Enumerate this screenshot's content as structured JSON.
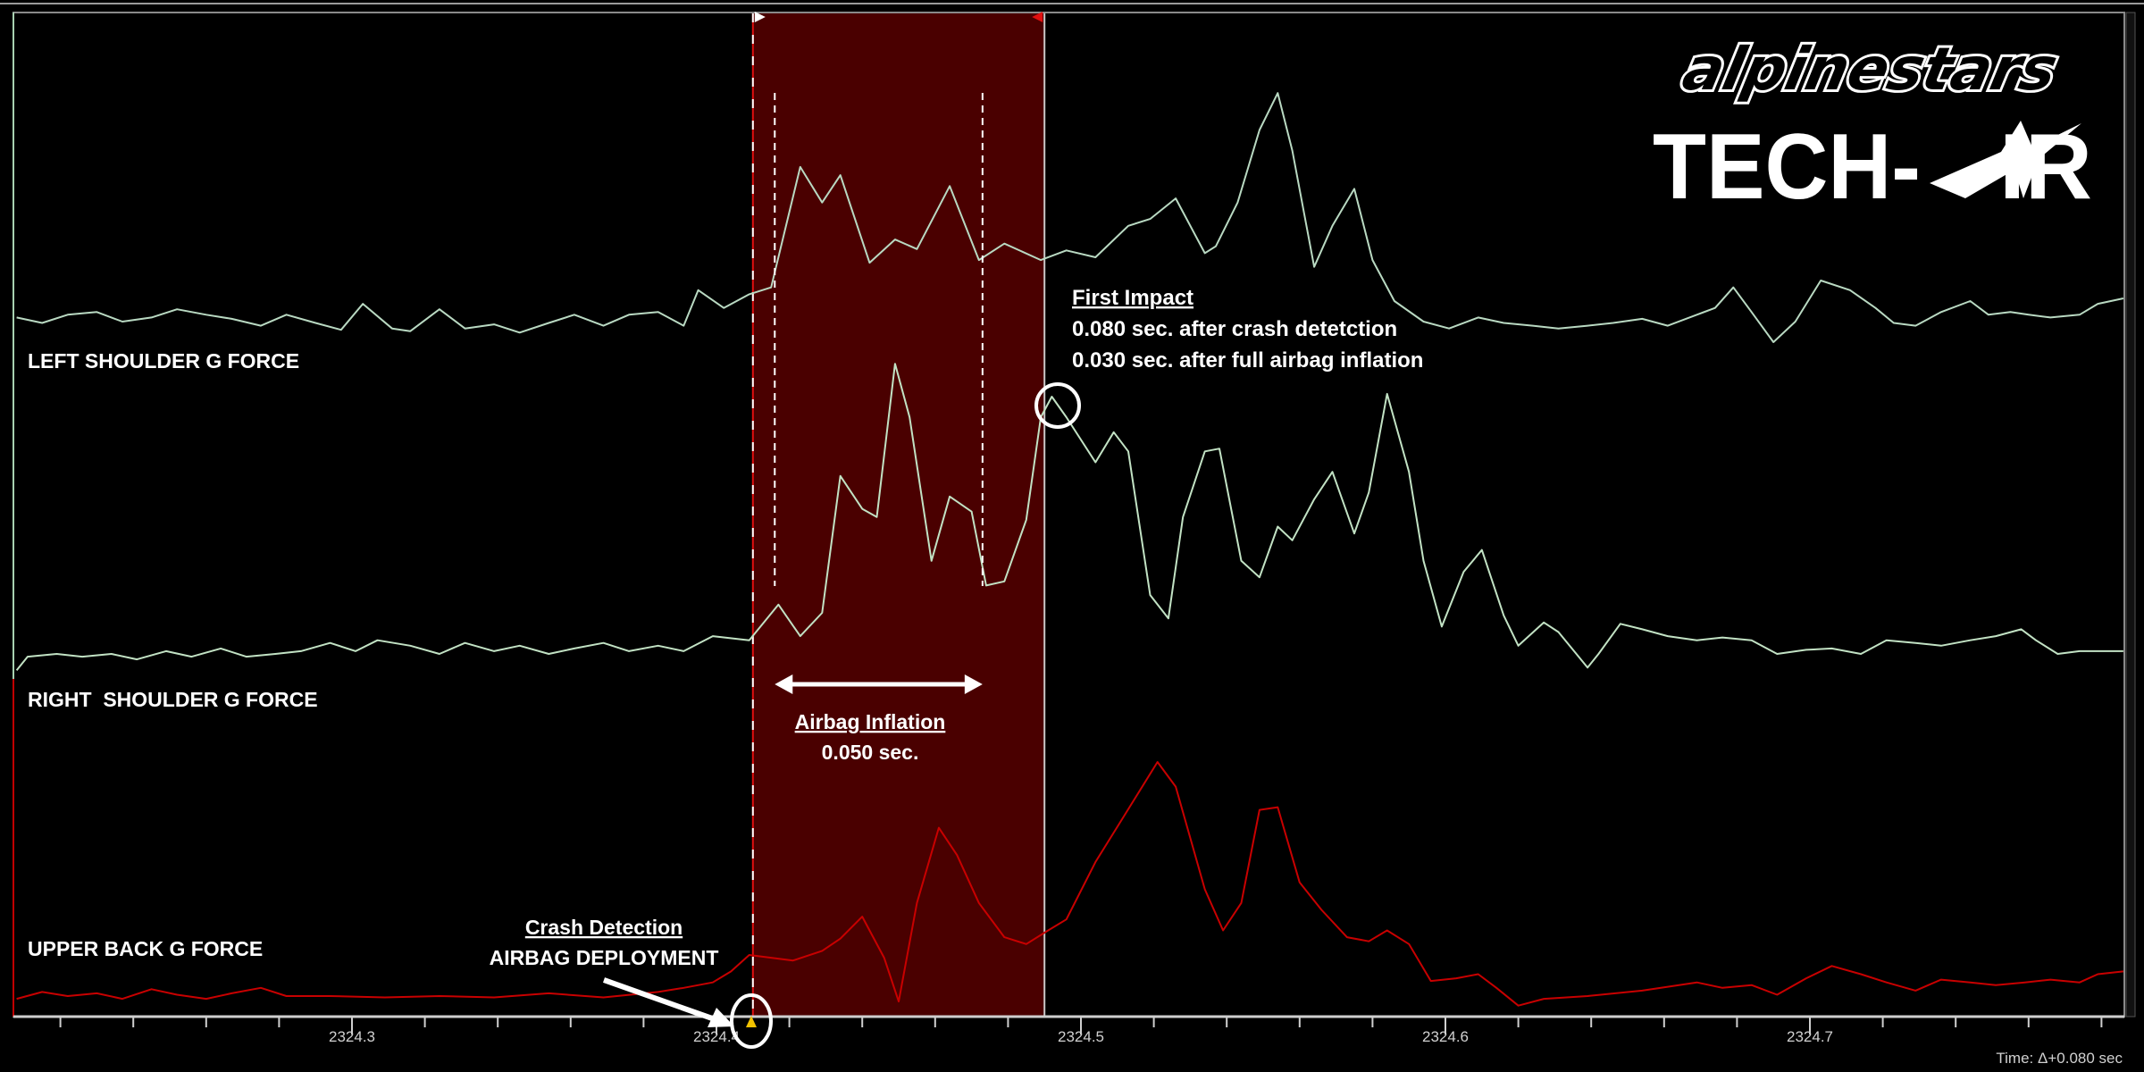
{
  "chart_data": {
    "type": "line",
    "title": "",
    "xlabel": "",
    "ylabel": "",
    "xlim": [
      2324.206,
      2324.786
    ],
    "x_ticks": [
      2324.3,
      2324.4,
      2324.5,
      2324.6,
      2324.7
    ],
    "x_tick_labels": [
      "2324.3",
      "2324.4",
      "2324.5",
      "2324.6",
      "2324.7"
    ],
    "minor_tick_step": 0.02,
    "grid": false,
    "time_readout": "Time: Δ+0.080 sec",
    "series": [
      {
        "name": "LEFT SHOULDER G FORCE",
        "color": "#b9d9c2",
        "points": [
          [
            2324.208,
            3
          ],
          [
            2324.215,
            -1
          ],
          [
            2324.222,
            5
          ],
          [
            2324.23,
            7
          ],
          [
            2324.237,
            0
          ],
          [
            2324.245,
            3
          ],
          [
            2324.252,
            9
          ],
          [
            2324.26,
            5
          ],
          [
            2324.267,
            2
          ],
          [
            2324.275,
            -3
          ],
          [
            2324.282,
            5
          ],
          [
            2324.29,
            -1
          ],
          [
            2324.297,
            -6
          ],
          [
            2324.303,
            13
          ],
          [
            2324.311,
            -5
          ],
          [
            2324.316,
            -7
          ],
          [
            2324.324,
            9
          ],
          [
            2324.331,
            -5
          ],
          [
            2324.339,
            -2
          ],
          [
            2324.346,
            -8
          ],
          [
            2324.354,
            -1
          ],
          [
            2324.361,
            5
          ],
          [
            2324.369,
            -3
          ],
          [
            2324.376,
            5
          ],
          [
            2324.384,
            7
          ],
          [
            2324.391,
            -3
          ],
          [
            2324.395,
            23
          ],
          [
            2324.402,
            10
          ],
          [
            2324.409,
            20
          ],
          [
            2324.415,
            25
          ],
          [
            2324.423,
            113
          ],
          [
            2324.429,
            87
          ],
          [
            2324.434,
            107
          ],
          [
            2324.442,
            43
          ],
          [
            2324.449,
            60
          ],
          [
            2324.455,
            53
          ],
          [
            2324.464,
            99
          ],
          [
            2324.472,
            45
          ],
          [
            2324.479,
            57
          ],
          [
            2324.489,
            45
          ],
          [
            2324.496,
            52
          ],
          [
            2324.504,
            47
          ],
          [
            2324.513,
            70
          ],
          [
            2324.519,
            75
          ],
          [
            2324.526,
            90
          ],
          [
            2324.534,
            50
          ],
          [
            2324.537,
            55
          ],
          [
            2324.543,
            87
          ],
          [
            2324.549,
            140
          ],
          [
            2324.554,
            167
          ],
          [
            2324.558,
            125
          ],
          [
            2324.564,
            40
          ],
          [
            2324.569,
            70
          ],
          [
            2324.575,
            97
          ],
          [
            2324.58,
            45
          ],
          [
            2324.586,
            15
          ],
          [
            2324.594,
            0
          ],
          [
            2324.601,
            -5
          ],
          [
            2324.609,
            3
          ],
          [
            2324.616,
            -1
          ],
          [
            2324.624,
            -3
          ],
          [
            2324.631,
            -5
          ],
          [
            2324.639,
            -3
          ],
          [
            2324.646,
            -1
          ],
          [
            2324.654,
            2
          ],
          [
            2324.661,
            -3
          ],
          [
            2324.669,
            5
          ],
          [
            2324.674,
            10
          ],
          [
            2324.679,
            25
          ],
          [
            2324.684,
            7
          ],
          [
            2324.69,
            -15
          ],
          [
            2324.696,
            0
          ],
          [
            2324.703,
            30
          ],
          [
            2324.711,
            23
          ],
          [
            2324.718,
            10
          ],
          [
            2324.723,
            -1
          ],
          [
            2324.729,
            -3
          ],
          [
            2324.736,
            7
          ],
          [
            2324.744,
            15
          ],
          [
            2324.749,
            5
          ],
          [
            2324.755,
            7
          ],
          [
            2324.76,
            5
          ],
          [
            2324.766,
            3
          ],
          [
            2324.774,
            5
          ],
          [
            2324.779,
            13
          ],
          [
            2324.786,
            17
          ]
        ]
      },
      {
        "name": "RIGHT  SHOULDER G FORCE",
        "color": "#c2e2c4",
        "points": [
          [
            2324.208,
            -12
          ],
          [
            2324.211,
            -2
          ],
          [
            2324.219,
            0
          ],
          [
            2324.226,
            -2
          ],
          [
            2324.234,
            0
          ],
          [
            2324.241,
            -4
          ],
          [
            2324.249,
            2
          ],
          [
            2324.256,
            -2
          ],
          [
            2324.264,
            4
          ],
          [
            2324.271,
            -2
          ],
          [
            2324.279,
            0
          ],
          [
            2324.286,
            2
          ],
          [
            2324.294,
            8
          ],
          [
            2324.301,
            2
          ],
          [
            2324.307,
            10
          ],
          [
            2324.316,
            6
          ],
          [
            2324.324,
            0
          ],
          [
            2324.331,
            8
          ],
          [
            2324.339,
            2
          ],
          [
            2324.346,
            6
          ],
          [
            2324.354,
            0
          ],
          [
            2324.361,
            4
          ],
          [
            2324.369,
            8
          ],
          [
            2324.376,
            2
          ],
          [
            2324.384,
            6
          ],
          [
            2324.391,
            2
          ],
          [
            2324.399,
            13
          ],
          [
            2324.409,
            10
          ],
          [
            2324.417,
            36
          ],
          [
            2324.423,
            13
          ],
          [
            2324.429,
            30
          ],
          [
            2324.434,
            130
          ],
          [
            2324.44,
            106
          ],
          [
            2324.444,
            100
          ],
          [
            2324.449,
            212
          ],
          [
            2324.453,
            173
          ],
          [
            2324.459,
            68
          ],
          [
            2324.464,
            115
          ],
          [
            2324.47,
            104
          ],
          [
            2324.474,
            50
          ],
          [
            2324.479,
            53
          ],
          [
            2324.485,
            98
          ],
          [
            2324.489,
            173
          ],
          [
            2324.492,
            188
          ],
          [
            2324.496,
            173
          ],
          [
            2324.504,
            140
          ],
          [
            2324.509,
            162
          ],
          [
            2324.513,
            148
          ],
          [
            2324.519,
            43
          ],
          [
            2324.524,
            26
          ],
          [
            2324.528,
            100
          ],
          [
            2324.534,
            148
          ],
          [
            2324.538,
            150
          ],
          [
            2324.544,
            68
          ],
          [
            2324.549,
            56
          ],
          [
            2324.554,
            93
          ],
          [
            2324.558,
            83
          ],
          [
            2324.564,
            113
          ],
          [
            2324.569,
            133
          ],
          [
            2324.575,
            88
          ],
          [
            2324.579,
            118
          ],
          [
            2324.584,
            190
          ],
          [
            2324.59,
            133
          ],
          [
            2324.594,
            68
          ],
          [
            2324.599,
            20
          ],
          [
            2324.605,
            60
          ],
          [
            2324.61,
            76
          ],
          [
            2324.616,
            28
          ],
          [
            2324.62,
            6
          ],
          [
            2324.627,
            23
          ],
          [
            2324.631,
            16
          ],
          [
            2324.639,
            -10
          ],
          [
            2324.642,
            0
          ],
          [
            2324.648,
            22
          ],
          [
            2324.654,
            18
          ],
          [
            2324.661,
            13
          ],
          [
            2324.669,
            10
          ],
          [
            2324.676,
            12
          ],
          [
            2324.684,
            10
          ],
          [
            2324.691,
            0
          ],
          [
            2324.699,
            3
          ],
          [
            2324.706,
            4
          ],
          [
            2324.714,
            0
          ],
          [
            2324.721,
            10
          ],
          [
            2324.729,
            8
          ],
          [
            2324.736,
            6
          ],
          [
            2324.744,
            10
          ],
          [
            2324.751,
            13
          ],
          [
            2324.758,
            18
          ],
          [
            2324.762,
            10
          ],
          [
            2324.768,
            0
          ],
          [
            2324.774,
            2
          ],
          [
            2324.786,
            2
          ]
        ]
      },
      {
        "name": "UPPER BACK G FORCE",
        "color": "#c80000",
        "points": [
          [
            2324.208,
            -2
          ],
          [
            2324.215,
            3
          ],
          [
            2324.222,
            0
          ],
          [
            2324.23,
            2
          ],
          [
            2324.237,
            -2
          ],
          [
            2324.245,
            5
          ],
          [
            2324.252,
            1
          ],
          [
            2324.26,
            -2
          ],
          [
            2324.267,
            2
          ],
          [
            2324.275,
            6
          ],
          [
            2324.282,
            0
          ],
          [
            2324.294,
            0
          ],
          [
            2324.309,
            -1
          ],
          [
            2324.324,
            0
          ],
          [
            2324.339,
            -1
          ],
          [
            2324.354,
            2
          ],
          [
            2324.369,
            -1
          ],
          [
            2324.384,
            3
          ],
          [
            2324.391,
            6
          ],
          [
            2324.399,
            10
          ],
          [
            2324.404,
            18
          ],
          [
            2324.409,
            30
          ],
          [
            2324.415,
            28
          ],
          [
            2324.421,
            26
          ],
          [
            2324.429,
            33
          ],
          [
            2324.434,
            42
          ],
          [
            2324.44,
            58
          ],
          [
            2324.446,
            28
          ],
          [
            2324.45,
            -4
          ],
          [
            2324.455,
            68
          ],
          [
            2324.461,
            123
          ],
          [
            2324.466,
            103
          ],
          [
            2324.472,
            68
          ],
          [
            2324.479,
            43
          ],
          [
            2324.485,
            38
          ],
          [
            2324.491,
            48
          ],
          [
            2324.496,
            56
          ],
          [
            2324.504,
            98
          ],
          [
            2324.511,
            128
          ],
          [
            2324.521,
            171
          ],
          [
            2324.526,
            153
          ],
          [
            2324.534,
            78
          ],
          [
            2324.539,
            48
          ],
          [
            2324.544,
            68
          ],
          [
            2324.549,
            136
          ],
          [
            2324.554,
            138
          ],
          [
            2324.56,
            83
          ],
          [
            2324.566,
            63
          ],
          [
            2324.573,
            43
          ],
          [
            2324.579,
            40
          ],
          [
            2324.584,
            48
          ],
          [
            2324.59,
            38
          ],
          [
            2324.596,
            11
          ],
          [
            2324.603,
            13
          ],
          [
            2324.609,
            16
          ],
          [
            2324.614,
            6
          ],
          [
            2324.62,
            -7
          ],
          [
            2324.627,
            -2
          ],
          [
            2324.639,
            0
          ],
          [
            2324.654,
            4
          ],
          [
            2324.669,
            10
          ],
          [
            2324.676,
            6
          ],
          [
            2324.684,
            8
          ],
          [
            2324.691,
            1
          ],
          [
            2324.699,
            13
          ],
          [
            2324.706,
            22
          ],
          [
            2324.714,
            16
          ],
          [
            2324.721,
            10
          ],
          [
            2324.729,
            4
          ],
          [
            2324.736,
            12
          ],
          [
            2324.744,
            10
          ],
          [
            2324.751,
            8
          ],
          [
            2324.759,
            10
          ],
          [
            2324.766,
            12
          ],
          [
            2324.774,
            10
          ],
          [
            2324.779,
            16
          ],
          [
            2324.786,
            18
          ]
        ]
      }
    ],
    "shaded_region": {
      "start": 2324.41,
      "end": 2324.49,
      "color": "#4a0000"
    },
    "inflation_markers": {
      "start": 2324.416,
      "end": 2324.473
    },
    "crash_detection_t": 2324.41,
    "first_impact_t": 2324.489,
    "annotations": {
      "crash_title": "Crash Detection",
      "crash_sub": "AIRBAG DEPLOYMENT",
      "inflation_title": "Airbag Inflation",
      "inflation_value": "0.050 sec.",
      "impact_title": "First Impact",
      "impact_line1": "0.080 sec. after crash detetction",
      "impact_line2": "0.030 sec. after full airbag inflation"
    }
  },
  "logo": {
    "brand": "alpinestars",
    "product": "TECH-AIR"
  },
  "colors": {
    "background": "#000000",
    "marker": "#f2c200"
  }
}
